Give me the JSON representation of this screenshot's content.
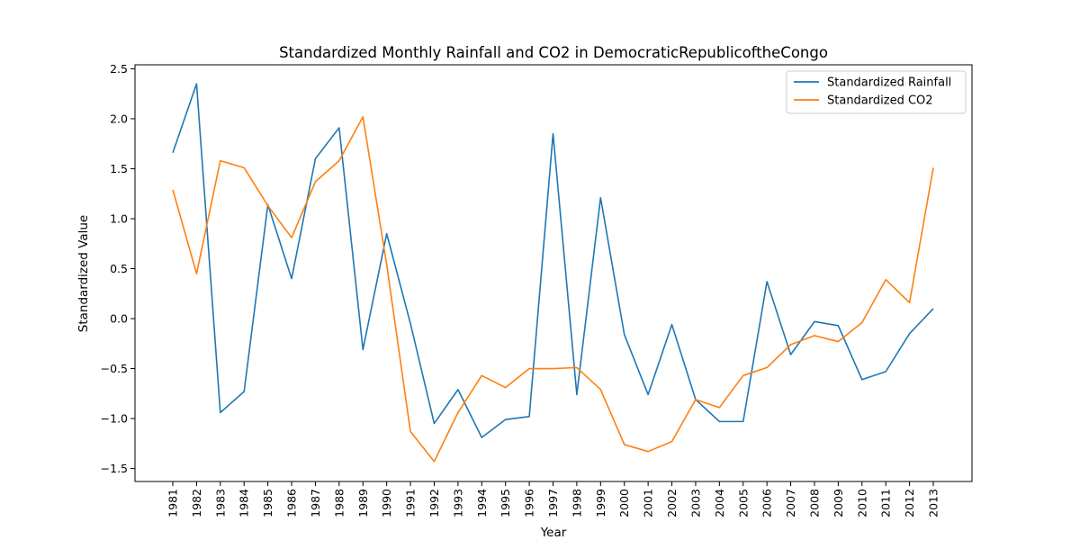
{
  "chart_data": {
    "type": "line",
    "title": "Standardized Monthly Rainfall and CO2 in DemocraticRepublicoftheCongo",
    "xlabel": "Year",
    "ylabel": "Standardized Value",
    "x": [
      "1981",
      "1982",
      "1983",
      "1984",
      "1985",
      "1986",
      "1987",
      "1988",
      "1989",
      "1990",
      "1991",
      "1992",
      "1993",
      "1994",
      "1995",
      "1996",
      "1997",
      "1998",
      "1999",
      "2000",
      "2001",
      "2002",
      "2003",
      "2004",
      "2005",
      "2006",
      "2007",
      "2008",
      "2009",
      "2010",
      "2011",
      "2012",
      "2013"
    ],
    "yticks": [
      -1.5,
      -1.0,
      -0.5,
      0.0,
      0.5,
      1.0,
      1.5,
      2.0,
      2.5
    ],
    "ytick_labels": [
      "−1.5",
      "−1.0",
      "−0.5",
      "0.0",
      "0.5",
      "1.0",
      "1.5",
      "2.0",
      "2.5"
    ],
    "ylim": [
      -1.63,
      2.54
    ],
    "grid": false,
    "legend_position": "top-right",
    "series": [
      {
        "name": "Standardized Rainfall",
        "color": "#1f77b4",
        "values": [
          1.66,
          2.35,
          -0.94,
          -0.73,
          1.14,
          0.4,
          1.6,
          1.91,
          -0.31,
          0.85,
          -0.05,
          -1.05,
          -0.71,
          -1.19,
          -1.01,
          -0.98,
          1.85,
          -0.76,
          1.21,
          -0.16,
          -0.76,
          -0.06,
          -0.81,
          -1.03,
          -1.03,
          0.37,
          -0.36,
          -0.03,
          -0.07,
          -0.61,
          -0.53,
          -0.15,
          0.1
        ]
      },
      {
        "name": "Standardized CO2",
        "color": "#ff7f0e",
        "values": [
          1.29,
          0.45,
          1.58,
          1.51,
          1.13,
          0.81,
          1.37,
          1.58,
          2.02,
          0.54,
          -1.13,
          -1.43,
          -0.94,
          -0.57,
          -0.69,
          -0.5,
          -0.5,
          -0.49,
          -0.71,
          -1.26,
          -1.33,
          -1.23,
          -0.81,
          -0.89,
          -0.57,
          -0.49,
          -0.26,
          -0.17,
          -0.23,
          -0.04,
          0.39,
          0.16,
          1.51
        ]
      }
    ]
  }
}
